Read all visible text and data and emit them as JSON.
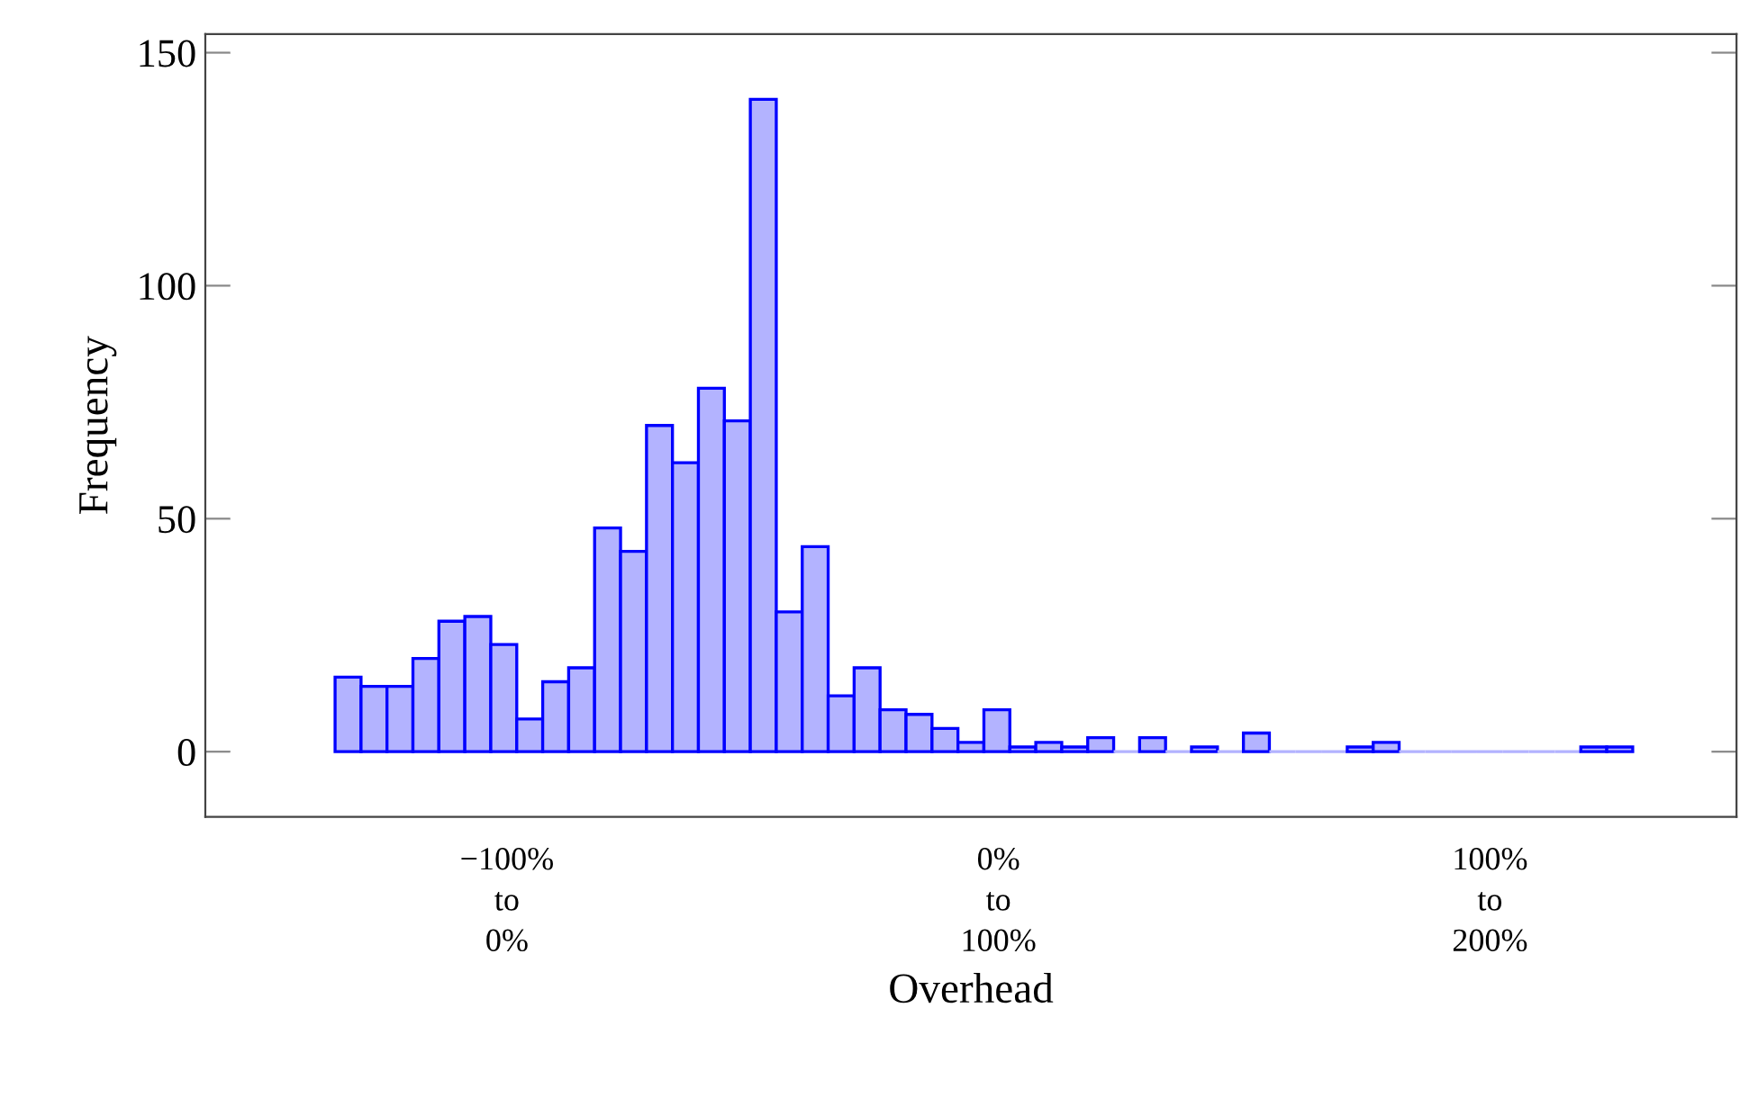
{
  "chart_data": {
    "type": "bar",
    "xlabel": "Overhead",
    "ylabel": "Frequency",
    "categories": [
      null,
      null,
      null,
      null,
      null,
      null,
      null,
      null,
      null,
      null,
      null,
      null,
      null,
      null,
      null,
      null,
      null,
      null,
      null,
      null,
      null,
      null,
      null,
      null,
      null,
      null,
      null,
      null,
      null,
      null,
      null,
      null,
      null,
      null,
      null,
      null,
      null,
      null,
      null,
      null,
      null,
      null,
      null,
      null,
      null,
      null,
      null,
      null,
      null,
      null,
      null,
      null,
      null,
      null,
      null,
      null,
      null,
      null,
      null
    ],
    "values": [
      null,
      null,
      null,
      null,
      null,
      16,
      14,
      14,
      20,
      28,
      29,
      23,
      7,
      15,
      18,
      48,
      43,
      70,
      62,
      78,
      71,
      140,
      30,
      44,
      12,
      18,
      9,
      8,
      5,
      2,
      9,
      1,
      2,
      1,
      3,
      0,
      3,
      0,
      1,
      0,
      4,
      0,
      0,
      0,
      1,
      2,
      0,
      0,
      0,
      0,
      0,
      0,
      0,
      1,
      1,
      null,
      null,
      null,
      null
    ],
    "color": "#b3b3ff",
    "ylim": [
      -14,
      154
    ],
    "yticks": [
      0,
      50,
      100,
      150
    ],
    "annotations": [
      "−100%\nto\n0%",
      "0%\nto\n100%",
      "100%\nto\n200%"
    ]
  }
}
